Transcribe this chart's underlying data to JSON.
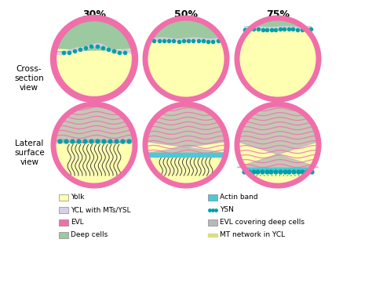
{
  "title_percentages": [
    "30%",
    "50%",
    "75%"
  ],
  "row_labels": [
    "Cross-\nsection\nview",
    "Lateral\nsurface\nview"
  ],
  "colors": {
    "yolk": "#FFFFB2",
    "ycl": "#D8D0E8",
    "evl": "#F06FAA",
    "deep_cells": "#9DC9A0",
    "actin_band": "#4DC8D4",
    "ysn_dot": "#00A0A8",
    "evl_deep": "#B8B8B8",
    "mt_network": "#FFFFAA",
    "outline": "#808080",
    "background": "#FFFFFF"
  },
  "legend_items": [
    {
      "label": "Yolk",
      "color": "#FFFFB2",
      "type": "patch"
    },
    {
      "label": "YCL with MTs/YSL",
      "color": "#D8D0E8",
      "type": "line"
    },
    {
      "label": "EVL",
      "color": "#F06FAA",
      "type": "patch"
    },
    {
      "label": "Deep cells",
      "color": "#9DC9A0",
      "type": "patch"
    },
    {
      "label": "Actin band",
      "color": "#4DC8D4",
      "type": "patch"
    },
    {
      "label": "YSN",
      "color": "#00A0A8",
      "type": "dot"
    },
    {
      "label": "EVL covering deep cells",
      "color": "#B8B8B8",
      "type": "patch"
    },
    {
      "label": "MT network in YCL",
      "color": "#FFFFAA",
      "type": "wave"
    }
  ]
}
